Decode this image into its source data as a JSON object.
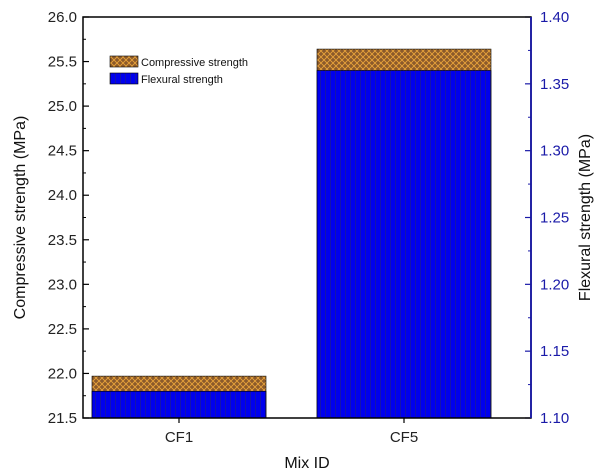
{
  "chart_data": {
    "type": "bar",
    "categories": [
      "CF1",
      "CF5"
    ],
    "xlabel": "Mix ID",
    "series": [
      {
        "name": "Compressive strength",
        "axis": "left",
        "values": [
          21.97,
          25.64
        ],
        "fill": "#8b5a2b",
        "pattern": "crosshatch",
        "pattern_color": "#e8a33a"
      },
      {
        "name": "Flexural strength",
        "axis": "right",
        "values": [
          1.12,
          1.36
        ],
        "fill": "#0000ee",
        "pattern": "vertical-lines",
        "pattern_color": "#1a1a9a"
      }
    ],
    "y_left": {
      "label": "Compressive strength (MPa)",
      "ylim": [
        21.5,
        26.0
      ],
      "ticks": [
        "21.5",
        "22.0",
        "22.5",
        "23.0",
        "23.5",
        "24.0",
        "24.5",
        "25.0",
        "25.5",
        "26.0"
      ],
      "color": "#000000"
    },
    "y_right": {
      "label": "Flexural strength (MPa)",
      "ylim": [
        1.1,
        1.4
      ],
      "ticks": [
        "1.10",
        "1.15",
        "1.20",
        "1.25",
        "1.30",
        "1.35",
        "1.40"
      ],
      "color": "#1a1aa8"
    },
    "legend": {
      "placement": "top-left"
    },
    "grid": false
  }
}
